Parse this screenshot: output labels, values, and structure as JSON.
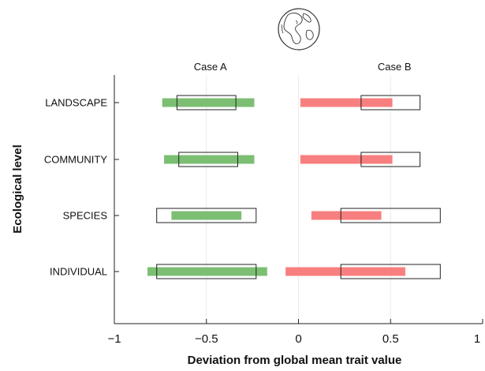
{
  "chart_data": {
    "type": "bar",
    "orientation": "horizontal-range",
    "xlabel": "Deviation from global mean trait value",
    "ylabel": "Ecological level",
    "xlim": [
      -1,
      1
    ],
    "xticks": [
      -1,
      -0.5,
      0,
      0.5,
      1
    ],
    "xtick_labels": [
      "−1",
      "−0.5",
      "0",
      "0.5",
      "1"
    ],
    "grid": "vertical",
    "categories": [
      "LANDSCAPE",
      "COMMUNITY",
      "SPECIES",
      "INDIVIDUAL"
    ],
    "panels": [
      {
        "label": "Case A",
        "color": "#7cbf73",
        "bars": [
          {
            "start": -0.74,
            "end": -0.24
          },
          {
            "start": -0.73,
            "end": -0.24
          },
          {
            "start": -0.69,
            "end": -0.31
          },
          {
            "start": -0.82,
            "end": -0.17
          }
        ],
        "boxes": [
          {
            "start": -0.66,
            "end": -0.34
          },
          {
            "start": -0.65,
            "end": -0.33
          },
          {
            "start": -0.77,
            "end": -0.23
          },
          {
            "start": -0.77,
            "end": -0.23
          }
        ]
      },
      {
        "label": "Case B",
        "color": "#f87f7f",
        "bars": [
          {
            "start": 0.01,
            "end": 0.51
          },
          {
            "start": 0.01,
            "end": 0.51
          },
          {
            "start": 0.07,
            "end": 0.45
          },
          {
            "start": -0.07,
            "end": 0.58
          }
        ],
        "boxes": [
          {
            "start": 0.34,
            "end": 0.66
          },
          {
            "start": 0.34,
            "end": 0.66
          },
          {
            "start": 0.23,
            "end": 0.77
          },
          {
            "start": 0.23,
            "end": 0.77
          }
        ]
      }
    ]
  },
  "icons": {
    "globe": "globe-icon"
  }
}
